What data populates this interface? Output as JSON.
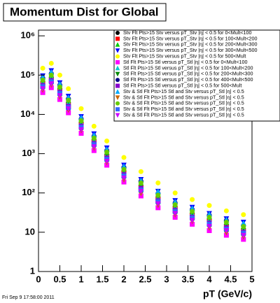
{
  "chart_data": {
    "type": "scatter",
    "title": "Momentum Dist for Global",
    "xlabel": "pT (GeV/c)",
    "footer": "Fri Sep  9 17:58:00 2011",
    "log_y": true,
    "grid": false,
    "xlim": [
      0,
      5
    ],
    "xticks": [
      0,
      0.5,
      1,
      1.5,
      2,
      2.5,
      3,
      3.5,
      4,
      4.5,
      5
    ],
    "ylim": [
      1,
      1400000
    ],
    "yticks": [
      1,
      10,
      {
        "value": 100,
        "label": "10²"
      },
      {
        "value": 1000,
        "label": "10³"
      },
      {
        "value": 10000,
        "label": "10⁴"
      },
      {
        "value": 100000,
        "label": "10⁵"
      },
      {
        "value": 1000000,
        "label": "10⁶"
      }
    ],
    "x": [
      0.1,
      0.3,
      0.5,
      0.7,
      1.0,
      1.3,
      1.6,
      2.0,
      2.4,
      2.8,
      3.2,
      3.6,
      4.0,
      4.4,
      4.8
    ],
    "series": [
      {
        "name": "Stv Flt Pts>15 Stv versus pT_Stv |η| < 0.5 for 0<Mult<100",
        "color": "#000000",
        "marker": "circle",
        "values": [
          48000,
          64000,
          32000,
          14000,
          4400,
          1600,
          680,
          260,
          110,
          56,
          32,
          22,
          15,
          11,
          8.8
        ]
      },
      {
        "name": "Stv Flt Pts>15 Stv versus pT_Stv |η| < 0.5 for 100<Mult<200",
        "color": "#ff0000",
        "marker": "square",
        "values": [
          60000,
          80000,
          40000,
          18000,
          5500,
          2000,
          850,
          320,
          140,
          70,
          40,
          27,
          19,
          14,
          11
        ]
      },
      {
        "name": "Stv Flt Pts>15 Stv versus pT_Stv |η| < 0.5 for 200<Mult<300",
        "color": "#00cc00",
        "marker": "triangle-up",
        "values": [
          78000,
          100000,
          52000,
          23000,
          7200,
          2600,
          1100,
          420,
          180,
          91,
          52,
          35,
          25,
          18,
          14
        ]
      },
      {
        "name": "Stv Flt Pts>15 Stv versus pT_Stv |η| < 0.5 for 300<Mult<500",
        "color": "#0000ff",
        "marker": "triangle-down",
        "values": [
          96000,
          130000,
          64000,
          29000,
          8800,
          3200,
          1400,
          510,
          220,
          110,
          64,
          43,
          30,
          22,
          18
        ]
      },
      {
        "name": "Stv Flt Pts>15 Stv versus pT_Stv |η| < 0.5 for 500<Mult",
        "color": "#ffff00",
        "marker": "circle",
        "values": [
          150000,
          200000,
          100000,
          45000,
          14000,
          5000,
          2100,
          800,
          350,
          180,
          100,
          68,
          48,
          35,
          28
        ]
      },
      {
        "name": "Stl Flt Pts>15 Stl versus pT_Stl |η| < 0.5 for 0<Mult<100",
        "color": "#ff00ff",
        "marker": "square",
        "values": [
          36000,
          48000,
          24000,
          11000,
          3300,
          1200,
          510,
          190,
          84,
          42,
          24,
          16,
          11,
          8.4,
          6.6
        ]
      },
      {
        "name": "Stl Flt Pts>15 Stl versus pT_Stl |η| < 0.5 for 100<Mult<200",
        "color": "#00cccc",
        "marker": "triangle-up",
        "values": [
          66000,
          88000,
          44000,
          20000,
          6100,
          2200,
          940,
          350,
          150,
          77,
          44,
          30,
          21,
          15,
          12
        ]
      },
      {
        "name": "Stl Flt Pts>15 Stl versus pT_Stl |η| < 0.5 for 200<Mult<300",
        "color": "#008800",
        "marker": "triangle-down",
        "values": [
          72000,
          96000,
          48000,
          22000,
          6600,
          2400,
          1000,
          380,
          170,
          84,
          48,
          32,
          23,
          17,
          13
        ]
      },
      {
        "name": "Stl Flt Pts>15 Stl versus pT_Stl |η| < 0.5 for 400<Mult<500",
        "color": "#000088",
        "marker": "circle",
        "values": [
          84000,
          110000,
          56000,
          25000,
          7700,
          2800,
          1200,
          450,
          200,
          98,
          56,
          38,
          27,
          20,
          15
        ]
      },
      {
        "name": "Stl Flt Pts>15 Stl versus pT_Stl |η| < 0.5 for 500<Mult",
        "color": "#8800cc",
        "marker": "square",
        "values": [
          54000,
          72000,
          36000,
          16000,
          5000,
          1800,
          770,
          290,
          130,
          63,
          36,
          24,
          17,
          13,
          9.9
        ]
      },
      {
        "name": "Stv & Stl Flt Pts>15 Stl and Stv versus pT_Stl |η| < 0.5",
        "color": "#00aaff",
        "marker": "triangle-up",
        "values": [
          90000,
          120000,
          60000,
          27000,
          8300,
          3000,
          1300,
          480,
          210,
          110,
          60,
          41,
          29,
          21,
          17
        ]
      },
      {
        "name": "Stv & Stl Flt Pts>15 Stl and Stv versus pT_Stl |η| < 0.5 ",
        "color": "#cc6600",
        "marker": "triangle-down",
        "values": [
          42000,
          56000,
          28000,
          13000,
          3900,
          1400,
          600,
          220,
          98,
          49,
          28,
          19,
          13,
          9.8,
          7.7
        ]
      },
      {
        "name": "Stv & Stl Flt Pts>15 Stl and Stv versus pT_Stl |η| < 0.5  ",
        "color": "#66cc00",
        "marker": "circle",
        "values": [
          75000,
          100000,
          50000,
          23000,
          6900,
          2500,
          1100,
          400,
          180,
          88,
          50,
          34,
          24,
          18,
          14
        ]
      },
      {
        "name": "Stv & Stl Flt Pts>15 Stl and Stv versus pT_Stl |η| < 0.5   ",
        "color": "#3366ff",
        "marker": "square",
        "values": [
          51000,
          68000,
          34000,
          15000,
          4700,
          1700,
          720,
          270,
          120,
          60,
          34,
          23,
          16,
          12,
          9.4
        ]
      },
      {
        "name": "Stv & Stl Flt Pts>15 Stl and Stv versus pT_Stl |η| < 0.5    ",
        "color": "#cc00ff",
        "marker": "triangle-down",
        "values": [
          45000,
          60000,
          30000,
          14000,
          4100,
          1500,
          640,
          240,
          110,
          53,
          30,
          20,
          14,
          11,
          8.3
        ]
      }
    ]
  }
}
